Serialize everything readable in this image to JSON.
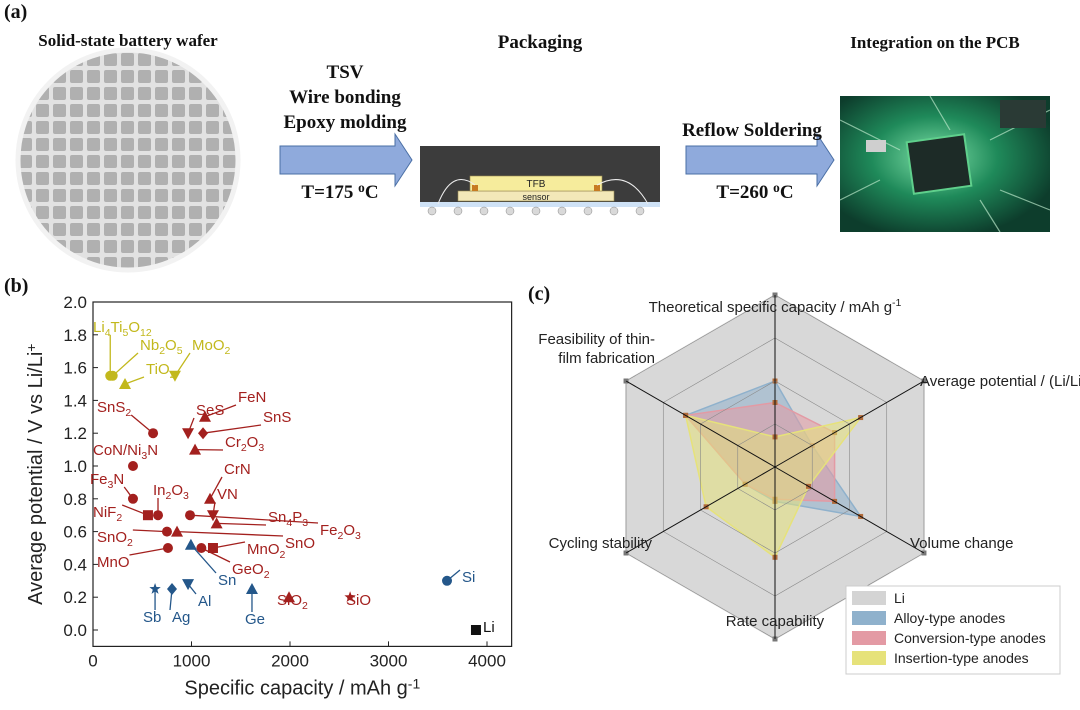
{
  "panel_a": {
    "label": "(a)",
    "wafer_title": "Solid-state battery wafer",
    "packaging_title": "Packaging",
    "pcb_title": "Integration on the PCB",
    "process_steps": [
      "TSV",
      "Wire bonding",
      "Epoxy molding"
    ],
    "packaging_temperature": [
      "T=175 ",
      "o",
      "C"
    ],
    "chip_top": "TFB",
    "chip_bottom": "sensor",
    "soldering_step": "Reflow Soldering",
    "soldering_temperature": [
      "T=260 ",
      "o",
      "C"
    ]
  },
  "chart_data": [
    {
      "type": "scatter",
      "panel_label": "(b)",
      "x_label": [
        "Specific capacity / mAh g",
        "-1"
      ],
      "y_label": [
        "Average potential / V vs Li/Li",
        "+"
      ],
      "xlim": [
        0,
        4250
      ],
      "ylim": [
        -0.1,
        2.0
      ],
      "xticks": [
        0,
        1000,
        2000,
        3000,
        4000
      ],
      "yticks": [
        {
          "value": 0,
          "label": "0.0"
        },
        {
          "value": 0.2,
          "label": "0.2"
        },
        {
          "value": 0.4,
          "label": "0.4"
        },
        {
          "value": 0.6,
          "label": "0.6"
        },
        {
          "value": 0.8,
          "label": "0.8"
        },
        {
          "value": 1,
          "label": "1.0"
        },
        {
          "value": 1.2,
          "label": "1.2"
        },
        {
          "value": 1.4,
          "label": "1.4"
        },
        {
          "value": 1.6,
          "label": "1.6"
        },
        {
          "value": 1.8,
          "label": "1.8"
        },
        {
          "value": 2,
          "label": "2.0"
        }
      ],
      "points": [
        {
          "label": "Li4Ti5O12",
          "x": 175,
          "y": 1.55,
          "color": "#c2b81c",
          "marker": "circle"
        },
        {
          "label": "Nb2O5",
          "x": 200,
          "y": 1.55,
          "color": "#c2b81c",
          "marker": "circle"
        },
        {
          "label": "TiO2",
          "x": 325,
          "y": 1.5,
          "color": "#c2b81c",
          "marker": "triangle"
        },
        {
          "label": "MoO2",
          "x": 832,
          "y": 1.55,
          "color": "#c2b81c",
          "marker": "triangle-down"
        },
        {
          "label": "SnS2",
          "x": 610,
          "y": 1.2,
          "color": "#a3201e",
          "marker": "circle"
        },
        {
          "label": "CoN/Ni3N",
          "x": 406,
          "y": 1.0,
          "color": "#a3201e",
          "marker": "circle"
        },
        {
          "label": "Fe3N",
          "x": 406,
          "y": 0.8,
          "color": "#a3201e",
          "marker": "circle"
        },
        {
          "label": "NiF2",
          "x": 558,
          "y": 0.7,
          "color": "#a3201e",
          "marker": "square"
        },
        {
          "label": "In2O3",
          "x": 660,
          "y": 0.7,
          "color": "#a3201e",
          "marker": "circle"
        },
        {
          "label": "SnO2",
          "x": 751,
          "y": 0.6,
          "color": "#a3201e",
          "marker": "circle"
        },
        {
          "label": "MnO",
          "x": 761,
          "y": 0.5,
          "color": "#a3201e",
          "marker": "circle"
        },
        {
          "label": "SnO",
          "x": 853,
          "y": 0.6,
          "color": "#a3201e",
          "marker": "triangle"
        },
        {
          "label": "Fe2O3",
          "x": 985,
          "y": 0.7,
          "color": "#a3201e",
          "marker": "circle"
        },
        {
          "label": "SeS",
          "x": 965,
          "y": 1.2,
          "color": "#a3201e",
          "marker": "triangle-down"
        },
        {
          "label": "FeN",
          "x": 1137,
          "y": 1.3,
          "color": "#a3201e",
          "marker": "triangle"
        },
        {
          "label": "SnS",
          "x": 1117,
          "y": 1.2,
          "color": "#a3201e",
          "marker": "diamond"
        },
        {
          "label": "Cr2O3",
          "x": 1036,
          "y": 1.1,
          "color": "#a3201e",
          "marker": "triangle"
        },
        {
          "label": "CrN",
          "x": 1188,
          "y": 0.8,
          "color": "#a3201e",
          "marker": "triangle"
        },
        {
          "label": "VN",
          "x": 1218,
          "y": 0.7,
          "color": "#a3201e",
          "marker": "triangle-down"
        },
        {
          "label": "Sn4P3",
          "x": 1255,
          "y": 0.65,
          "color": "#a3201e",
          "marker": "triangle"
        },
        {
          "label": "MnO2",
          "x": 1218,
          "y": 0.5,
          "color": "#a3201e",
          "marker": "square"
        },
        {
          "label": "GeO2",
          "x": 1100,
          "y": 0.5,
          "color": "#a3201e",
          "marker": "circle"
        },
        {
          "label": "SiO2",
          "x": 1990,
          "y": 0.2,
          "color": "#a3201e",
          "marker": "triangle"
        },
        {
          "label": "SiO",
          "x": 2610,
          "y": 0.2,
          "color": "#a3201e",
          "marker": "star"
        },
        {
          "label": "Si",
          "x": 3594,
          "y": 0.3,
          "color": "#24578a",
          "marker": "circle"
        },
        {
          "label": "Sn",
          "x": 994,
          "y": 0.52,
          "color": "#24578a",
          "marker": "triangle"
        },
        {
          "label": "Al",
          "x": 965,
          "y": 0.28,
          "color": "#24578a",
          "marker": "triangle-down"
        },
        {
          "label": "Ag",
          "x": 802,
          "y": 0.25,
          "color": "#24578a",
          "marker": "diamond"
        },
        {
          "label": "Sb",
          "x": 630,
          "y": 0.25,
          "color": "#24578a",
          "marker": "star"
        },
        {
          "label": "Ge",
          "x": 1614,
          "y": 0.25,
          "color": "#24578a",
          "marker": "triangle"
        },
        {
          "label": "Li",
          "x": 3888,
          "y": 0,
          "color": "#111111",
          "marker": "square"
        }
      ]
    },
    {
      "type": "radar",
      "panel_label": "(c)",
      "axes": [
        [
          [
            "Theoretical specific capacity / mAh g",
            "-1"
          ]
        ],
        [
          [
            "Average potential / (Li/Li",
            "+",
            ")"
          ]
        ],
        [
          [
            "Volume change"
          ]
        ],
        [
          [
            "Rate capability"
          ]
        ],
        [
          [
            "Cycling stability"
          ]
        ],
        [
          [
            "Feasibility of thin-"
          ],
          [
            "film fabrication"
          ]
        ]
      ],
      "rlim": [
        0,
        4
      ],
      "rticks": [
        1,
        2,
        3,
        4
      ],
      "legend": "bottom-right",
      "series": [
        {
          "name": "Li",
          "color": "#d4d4d4",
          "values": [
            4,
            4,
            4,
            4,
            4,
            4
          ]
        },
        {
          "name": "Alloy-type anodes",
          "color": "#8fb1cc",
          "values": [
            2,
            1,
            2.3,
            0.8,
            0.8,
            2.4
          ]
        },
        {
          "name": "Conversion-type anodes",
          "color": "#e39aa4",
          "values": [
            1.5,
            1.6,
            1.6,
            0.75,
            0.8,
            2.4
          ]
        },
        {
          "name": "Insertion-type anodes",
          "color": "#e6e27a",
          "values": [
            0.7,
            2.3,
            0.9,
            2.1,
            1.85,
            2.4
          ]
        }
      ]
    }
  ]
}
